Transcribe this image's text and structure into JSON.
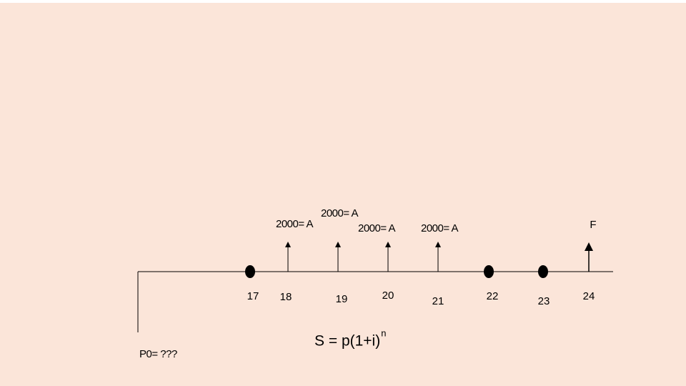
{
  "timeline": {
    "periods": [
      "17",
      "18",
      "19",
      "20",
      "21",
      "22",
      "23",
      "24"
    ],
    "payments": [
      "2000= A",
      "2000= A",
      "2000= A",
      "2000= A"
    ],
    "future_label": "F",
    "present_label": "P0= ???"
  },
  "formula": {
    "base": "S = p(1+i)",
    "exponent": "n"
  }
}
